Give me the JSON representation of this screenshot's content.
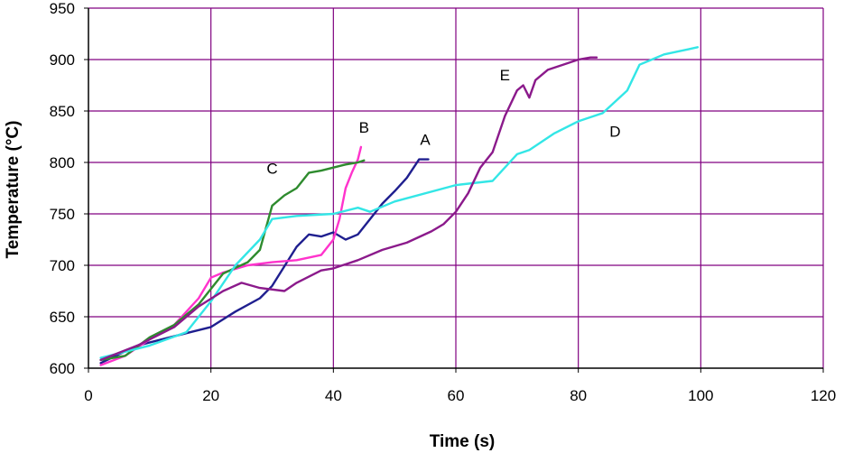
{
  "chart_data": {
    "type": "line",
    "xlabel": "Time (s)",
    "ylabel": "Temperature (°C)",
    "xlim": [
      0,
      120
    ],
    "ylim": [
      600,
      950
    ],
    "x_ticks": [
      0,
      20,
      40,
      60,
      80,
      100,
      120
    ],
    "y_ticks": [
      600,
      650,
      700,
      750,
      800,
      850,
      900,
      950
    ],
    "x_tick_labels": [
      "0",
      "20",
      "40",
      "60",
      "80",
      "100",
      "120"
    ],
    "y_tick_labels": [
      "600",
      "650",
      "700",
      "750",
      "800",
      "850",
      "900",
      "950"
    ],
    "grid": true,
    "legend": "none",
    "gridColor": "#800080",
    "series": [
      {
        "name": "A",
        "color": "#1f1f8f",
        "x": [
          2,
          8,
          12,
          16,
          20,
          24,
          28,
          30,
          34,
          36,
          38,
          40,
          42,
          44,
          46,
          48,
          50,
          52,
          54,
          55.5
        ],
        "y": [
          605,
          622,
          628,
          634,
          640,
          655,
          668,
          680,
          718,
          730,
          728,
          732,
          725,
          730,
          745,
          760,
          772,
          785,
          803,
          803
        ]
      },
      {
        "name": "B",
        "color": "#ff33cc",
        "x": [
          2,
          6,
          10,
          14,
          18,
          20,
          22,
          26,
          30,
          34,
          38,
          40,
          41,
          42,
          43,
          44,
          44.5
        ],
        "y": [
          603,
          612,
          628,
          642,
          668,
          688,
          693,
          700,
          703,
          705,
          710,
          725,
          745,
          775,
          790,
          803,
          815
        ]
      },
      {
        "name": "C",
        "color": "#2e8b2e",
        "x": [
          2,
          6,
          10,
          14,
          18,
          22,
          26,
          28,
          30,
          32,
          34,
          36,
          38,
          40,
          42,
          44,
          45
        ],
        "y": [
          608,
          612,
          630,
          642,
          662,
          692,
          703,
          715,
          758,
          768,
          775,
          790,
          792,
          795,
          798,
          800,
          802
        ]
      },
      {
        "name": "D",
        "color": "#33e6e6",
        "x": [
          2,
          10,
          16,
          20,
          24,
          28,
          30,
          34,
          40,
          44,
          46,
          50,
          60,
          66,
          68,
          70,
          72,
          76,
          80,
          84,
          88,
          90,
          92,
          94,
          98,
          99.5
        ],
        "y": [
          610,
          622,
          635,
          665,
          700,
          725,
          745,
          748,
          750,
          756,
          752,
          762,
          778,
          782,
          795,
          808,
          812,
          828,
          840,
          848,
          870,
          895,
          900,
          905,
          910,
          912
        ]
      },
      {
        "name": "E",
        "color": "#8b1a8b",
        "x": [
          2,
          8,
          14,
          18,
          22,
          25,
          28,
          32,
          34,
          38,
          40,
          44,
          48,
          52,
          56,
          58,
          60,
          62,
          64,
          66,
          68,
          70,
          71,
          72,
          73,
          75,
          78,
          80,
          82,
          83
        ],
        "y": [
          608,
          622,
          640,
          660,
          675,
          683,
          678,
          675,
          683,
          695,
          697,
          705,
          715,
          722,
          733,
          740,
          752,
          770,
          795,
          810,
          845,
          870,
          875,
          863,
          880,
          890,
          896,
          900,
          902,
          902
        ]
      }
    ],
    "annotations": [
      {
        "text": "A",
        "x": 55,
        "y": 817
      },
      {
        "text": "B",
        "x": 45,
        "y": 829
      },
      {
        "text": "C",
        "x": 30,
        "y": 789
      },
      {
        "text": "D",
        "x": 86,
        "y": 825
      },
      {
        "text": "E",
        "x": 68,
        "y": 880
      }
    ]
  }
}
